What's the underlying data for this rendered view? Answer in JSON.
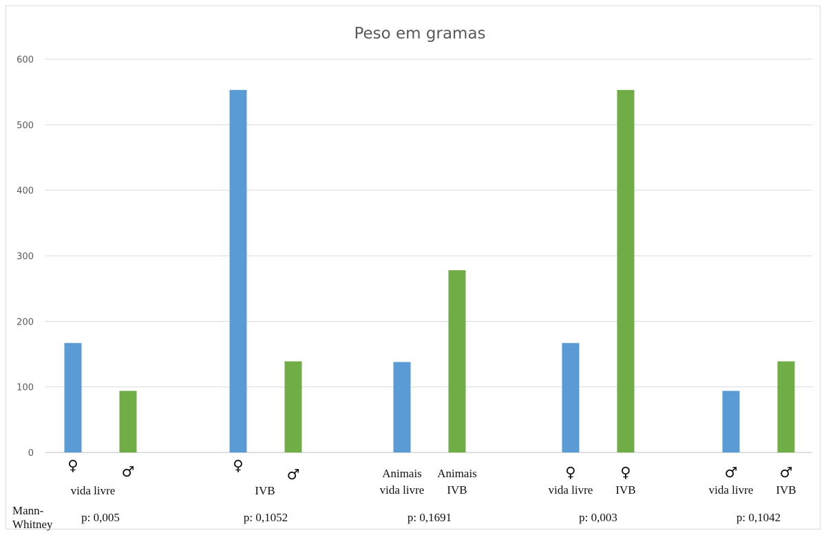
{
  "chart_data": {
    "type": "bar",
    "title": "Peso em gramas",
    "xlabel": "",
    "ylabel": "",
    "ylim": [
      0,
      600
    ],
    "y_ticks": [
      "0",
      "100",
      "200",
      "300",
      "400",
      "500",
      "600"
    ],
    "grid": true,
    "legend": "none",
    "colors": {
      "blue": "#5b9bd5",
      "green": "#70ad47"
    },
    "groups": [
      {
        "p_value_label": "p: 0,005",
        "bars": [
          {
            "value": 167,
            "color_key": "blue",
            "label_lines": [
              "♀"
            ],
            "sub_label": "vida livre"
          },
          {
            "value": 94,
            "color_key": "green",
            "label_lines": [
              "♂"
            ],
            "sub_label": ""
          }
        ]
      },
      {
        "p_value_label": "p: 0,1052",
        "bars": [
          {
            "value": 553,
            "color_key": "blue",
            "label_lines": [
              "♀"
            ],
            "sub_label": "IVB"
          },
          {
            "value": 139,
            "color_key": "green",
            "label_lines": [
              "♂"
            ],
            "sub_label": ""
          }
        ]
      },
      {
        "p_value_label": "p: 0,1691",
        "bars": [
          {
            "value": 138,
            "color_key": "blue",
            "label_lines": [
              "Animais",
              "vida livre"
            ],
            "sub_label": ""
          },
          {
            "value": 278,
            "color_key": "green",
            "label_lines": [
              "Animais",
              "IVB"
            ],
            "sub_label": ""
          }
        ]
      },
      {
        "p_value_label": "p: 0,003",
        "bars": [
          {
            "value": 167,
            "color_key": "blue",
            "label_lines": [
              "♀",
              "vida livre"
            ],
            "sub_label": ""
          },
          {
            "value": 553,
            "color_key": "green",
            "label_lines": [
              "♀",
              "IVB"
            ],
            "sub_label": ""
          }
        ]
      },
      {
        "p_value_label": "p: 0,1042",
        "bars": [
          {
            "value": 94,
            "color_key": "blue",
            "label_lines": [
              "♂",
              "vida livre"
            ],
            "sub_label": ""
          },
          {
            "value": 139,
            "color_key": "green",
            "label_lines": [
              "♂",
              "IVB"
            ],
            "sub_label": ""
          }
        ]
      }
    ],
    "test_label_lines": [
      "Mann-",
      "Whitney"
    ]
  }
}
